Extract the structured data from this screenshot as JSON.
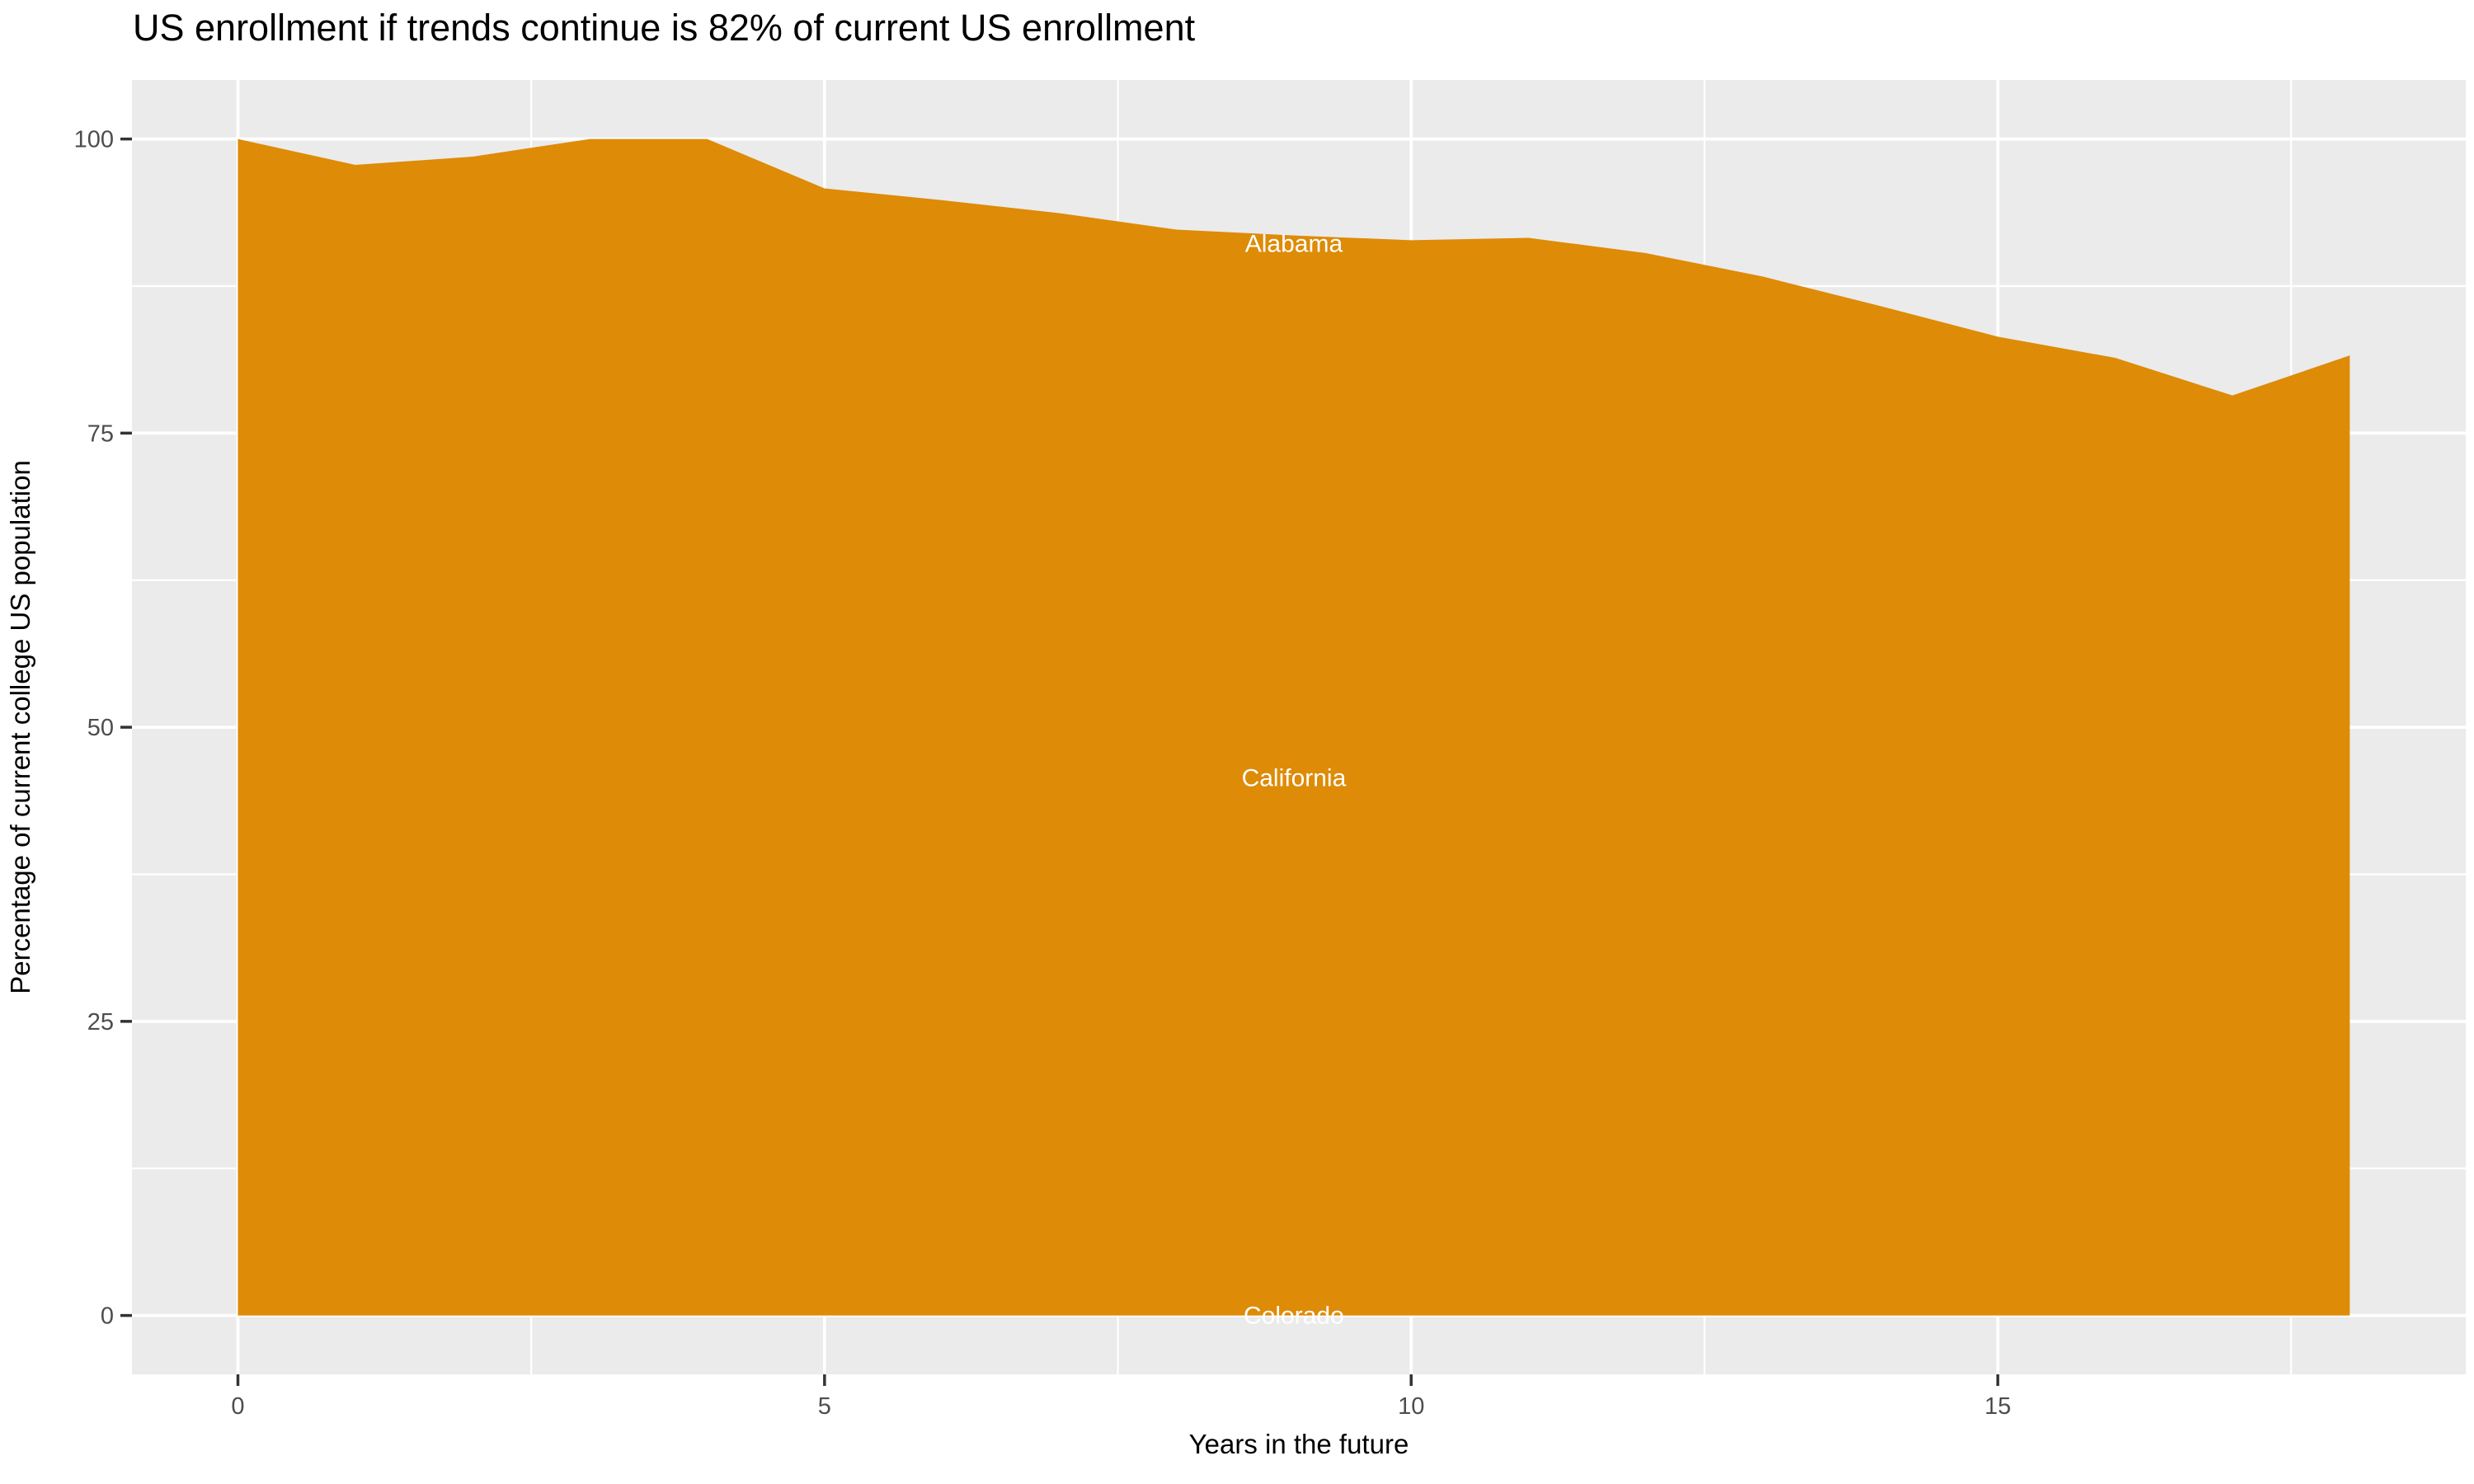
{
  "title": {
    "text": "US enrollment if trends continue is 82% of current US enrollment"
  },
  "chart_data": {
    "type": "area",
    "stacked": true,
    "title": "US enrollment if trends continue is 82% of current US enrollment",
    "xlabel": "Years in the future",
    "ylabel": "Percentage of current college US population",
    "x": [
      0,
      1,
      2,
      3,
      4,
      5,
      6,
      7,
      8,
      9,
      10,
      11,
      12,
      13,
      14,
      15,
      16,
      17,
      18
    ],
    "total_values": [
      100,
      97.8,
      98.5,
      100,
      100,
      95.8,
      94.8,
      93.7,
      92.3,
      91.8,
      91.4,
      91.6,
      90.3,
      88.3,
      85.8,
      83.2,
      81.4,
      78.2,
      81.6
    ],
    "series": [
      {
        "name": "Colorado",
        "band": "bottom"
      },
      {
        "name": "California",
        "band": "middle"
      },
      {
        "name": "Alabama",
        "band": "top"
      }
    ],
    "annotations": [
      {
        "label": "Alabama",
        "x": 9,
        "y": 91.1
      },
      {
        "label": "California",
        "x": 9,
        "y": 45.7
      },
      {
        "label": "Colorado",
        "x": 9,
        "y": 0.0
      }
    ],
    "xlim": [
      -0.9,
      18.9
    ],
    "ylim": [
      -5,
      105
    ],
    "x_axis": {
      "major": [
        0,
        5,
        10,
        15
      ],
      "minor": [
        2.5,
        7.5,
        12.5,
        17.5
      ],
      "labels": [
        "0",
        "5",
        "10",
        "15"
      ]
    },
    "y_axis": {
      "major": [
        0,
        25,
        50,
        75,
        100
      ],
      "minor": [
        12.5,
        37.5,
        62.5,
        87.5
      ],
      "labels": [
        "0",
        "25",
        "50",
        "75",
        "100"
      ]
    },
    "grid": true,
    "legend": "none"
  },
  "style": {
    "area_color": "#DE8B07",
    "panel_bg": "#EBEBEB",
    "grid_color": "#FFFFFF",
    "tick_color": "#333333",
    "tick_label_color": "#4D4D4D",
    "axis_title_color": "#000000",
    "title_color": "#000000",
    "annotation_color": "#FFFFFF"
  }
}
